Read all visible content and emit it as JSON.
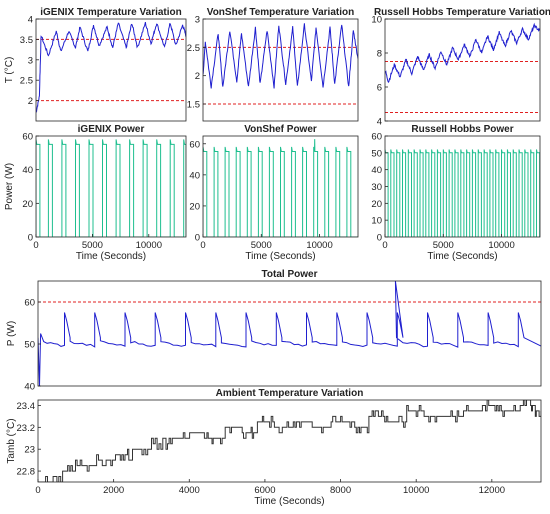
{
  "colors": {
    "temp": "#1f1fcf",
    "power": "#1fbf8f",
    "total": "#1f1fcf",
    "ambient": "#333333",
    "threshold": "#e02020",
    "axis": "#262626",
    "grid_bg": "#ffffff"
  },
  "chart_data": [
    {
      "id": "igenix-temp",
      "type": "line",
      "title": "iGENIX Temperature Variation",
      "ylabel": "T (°C)",
      "xlim": [
        0,
        13300
      ],
      "ylim": [
        1.5,
        4.0
      ],
      "yticks": [
        2,
        2.5,
        3,
        3.5,
        4
      ],
      "thresholds": [
        3.5,
        2.0
      ],
      "series": [
        {
          "x": [
            0,
            300,
            450,
            1100,
            1800,
            2200,
            2900,
            3500,
            3900,
            4600,
            5100,
            5600,
            6300,
            6800,
            7300,
            8000,
            8500,
            9000,
            9700,
            10200,
            10700,
            11400,
            11900,
            12400,
            13000,
            13300
          ],
          "y": [
            1.7,
            2.1,
            3.6,
            3.1,
            3.7,
            3.2,
            3.7,
            3.3,
            3.8,
            3.2,
            3.85,
            3.35,
            3.8,
            3.3,
            3.9,
            3.3,
            3.9,
            3.3,
            3.9,
            3.4,
            3.9,
            3.3,
            3.9,
            3.35,
            3.85,
            3.6
          ]
        }
      ]
    },
    {
      "id": "vonshef-temp",
      "type": "line",
      "title": "VonShef Temperature Variation",
      "ylabel": "",
      "xlim": [
        0,
        13300
      ],
      "ylim": [
        1.2,
        3.0
      ],
      "yticks": [
        1.5,
        2,
        2.5,
        3
      ],
      "thresholds": [
        2.5,
        1.5
      ],
      "series": [
        {
          "x": [
            0,
            200,
            700,
            1300,
            1700,
            2300,
            2900,
            3300,
            3900,
            4500,
            4900,
            5500,
            6100,
            6500,
            7100,
            7700,
            8100,
            8700,
            9300,
            9700,
            10300,
            10900,
            11300,
            11900,
            12500,
            12900,
            13300
          ],
          "y": [
            2.0,
            2.6,
            1.8,
            2.75,
            1.8,
            2.8,
            1.9,
            2.75,
            1.8,
            2.85,
            1.85,
            2.8,
            1.8,
            2.9,
            1.85,
            2.85,
            1.8,
            2.9,
            1.9,
            2.85,
            1.8,
            2.85,
            1.85,
            2.9,
            1.8,
            2.8,
            2.3
          ]
        }
      ]
    },
    {
      "id": "russell-temp",
      "type": "line",
      "title": "Russell Hobbs Temperature Variation",
      "ylabel": "",
      "xlim": [
        0,
        13300
      ],
      "ylim": [
        4,
        10
      ],
      "yticks": [
        4,
        6,
        8,
        10
      ],
      "thresholds": [
        7.5,
        4.5
      ],
      "series": [
        {
          "x": [
            0,
            300,
            800,
            1300,
            1800,
            2300,
            2800,
            3300,
            3800,
            4300,
            4800,
            5300,
            5800,
            6300,
            6800,
            7300,
            7800,
            8300,
            8800,
            9300,
            9800,
            10300,
            10800,
            11300,
            11800,
            12300,
            12800,
            13300
          ],
          "y": [
            7.0,
            6.3,
            7.3,
            6.6,
            7.6,
            6.8,
            7.8,
            7.0,
            7.9,
            7.1,
            8.1,
            7.3,
            8.3,
            7.6,
            8.5,
            7.8,
            8.8,
            8.0,
            9.0,
            8.2,
            9.2,
            8.4,
            9.3,
            8.6,
            9.4,
            8.8,
            9.6,
            9.3
          ]
        }
      ]
    },
    {
      "id": "igenix-power",
      "type": "line",
      "title": "iGENIX Power",
      "ylabel": "Power (W)",
      "xlabel": "Time (Seconds)",
      "xlim": [
        0,
        13300
      ],
      "ylim": [
        0,
        60
      ],
      "xticks": [
        0,
        5000,
        10000
      ],
      "yticks": [
        0,
        20,
        40,
        60
      ],
      "pulses": {
        "starts": [
          0,
          1100,
          2300,
          3500,
          4700,
          5900,
          7100,
          8300,
          9500,
          10700,
          11900,
          13100
        ],
        "width": 350,
        "level": 55,
        "peak": 58,
        "base": 0
      }
    },
    {
      "id": "vonshef-power",
      "type": "line",
      "title": "VonShef Power",
      "ylabel": "",
      "xlabel": "Time (Seconds)",
      "xlim": [
        0,
        13300
      ],
      "ylim": [
        0,
        65
      ],
      "xticks": [
        0,
        5000,
        10000
      ],
      "yticks": [
        0,
        20,
        40,
        60
      ],
      "pulses": {
        "starts": [
          0,
          950,
          1900,
          2850,
          3800,
          4750,
          5700,
          6650,
          7600,
          8550,
          9500,
          10450,
          11400,
          12350
        ],
        "width": 330,
        "level": 55,
        "peak": 58,
        "base": 0,
        "spike": {
          "x": 9500,
          "y": 63
        }
      }
    },
    {
      "id": "russell-power",
      "type": "line",
      "title": "Russell Hobbs Power",
      "ylabel": "",
      "xlabel": "Time (Seconds)",
      "xlim": [
        0,
        13300
      ],
      "ylim": [
        0,
        60
      ],
      "xticks": [
        0,
        5000,
        10000
      ],
      "yticks": [
        0,
        10,
        20,
        30,
        40,
        50,
        60
      ],
      "pulses": {
        "starts": [
          0,
          500,
          1000,
          1500,
          2000,
          2500,
          3000,
          3500,
          4000,
          4500,
          5000,
          5500,
          6000,
          6500,
          7000,
          7500,
          8000,
          8500,
          9000,
          9500,
          10000,
          10500,
          11000,
          11500,
          12000,
          12500,
          13000
        ],
        "width": 270,
        "level": 50,
        "peak": 52,
        "base": 0
      }
    },
    {
      "id": "total-power",
      "type": "line",
      "title": "Total Power",
      "ylabel": "P (W)",
      "xlim": [
        0,
        13300
      ],
      "ylim": [
        40,
        65
      ],
      "yticks": [
        40,
        50,
        60
      ],
      "thresholds": [
        60
      ],
      "cycles": {
        "starts": [
          0,
          700,
          1500,
          2300,
          3100,
          3900,
          4700,
          5500,
          6300,
          7100,
          7900,
          8700,
          9500,
          10300,
          11100,
          11900,
          12700
        ],
        "base": 49.5,
        "peak": 57.5,
        "trough": 50.5,
        "spike": {
          "x": 9450,
          "y": 65
        },
        "initial_dip": {
          "x": 40,
          "y": 40
        }
      }
    },
    {
      "id": "ambient-temp",
      "type": "line",
      "title": "Ambient Temperature Variation",
      "ylabel": "Tamb (°C)",
      "xlabel": "Time (Seconds)",
      "xlim": [
        0,
        13300
      ],
      "ylim": [
        22.7,
        23.45
      ],
      "xticks": [
        0,
        2000,
        4000,
        6000,
        8000,
        10000,
        12000
      ],
      "yticks": [
        22.8,
        23,
        23.2,
        23.4
      ],
      "series": [
        {
          "x": [
            0,
            600,
            700,
            1200,
            1800,
            2300,
            2700,
            3300,
            3800,
            4300,
            4700,
            5200,
            5600,
            6000,
            6500,
            7000,
            7500,
            8000,
            8500,
            9000,
            9500,
            10000,
            10500,
            11000,
            11500,
            12000,
            12500,
            13000,
            13300
          ],
          "y": [
            22.7,
            22.7,
            22.8,
            22.85,
            22.9,
            22.95,
            23.0,
            23.05,
            23.1,
            23.15,
            23.1,
            23.2,
            23.15,
            23.25,
            23.2,
            23.25,
            23.2,
            23.25,
            23.2,
            23.3,
            23.25,
            23.35,
            23.3,
            23.3,
            23.35,
            23.4,
            23.35,
            23.4,
            23.35
          ]
        }
      ]
    }
  ]
}
